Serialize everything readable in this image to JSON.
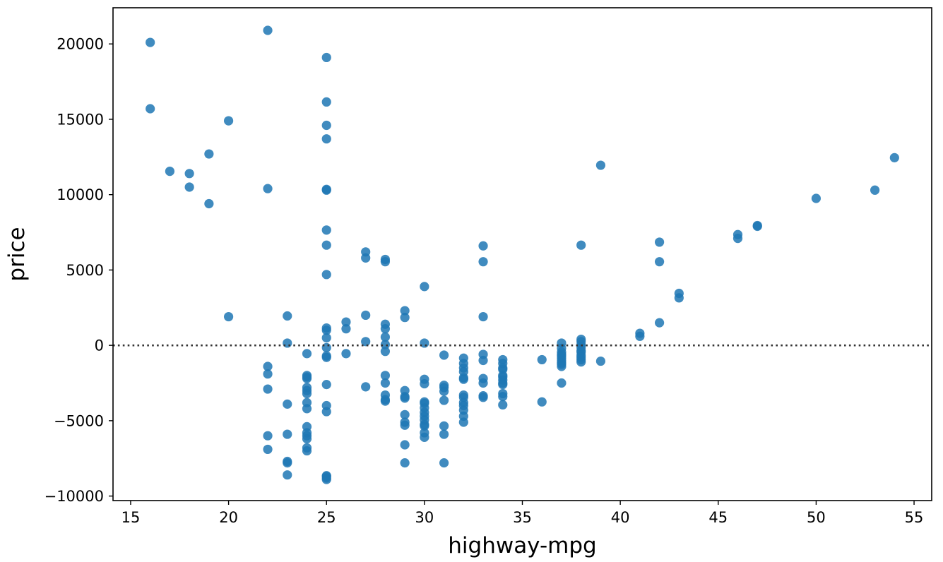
{
  "chart_data": {
    "type": "scatter",
    "xlabel": "highway-mpg",
    "ylabel": "price",
    "xlim": [
      14.1,
      55.9
    ],
    "ylim": [
      -10300,
      22400
    ],
    "xticks": [
      15,
      20,
      25,
      30,
      35,
      40,
      45,
      50,
      55
    ],
    "yticks": [
      -10000,
      -5000,
      0,
      5000,
      10000,
      15000,
      20000
    ],
    "xtick_labels": [
      "15",
      "20",
      "25",
      "30",
      "35",
      "40",
      "45",
      "50",
      "55"
    ],
    "ytick_labels": [
      "−10000",
      "−5000",
      "0",
      "5000",
      "10000",
      "15000",
      "20000"
    ],
    "grid": false,
    "reference_line": {
      "y": 0,
      "style": "dotted"
    },
    "colors": {
      "point": "#1f77b4",
      "reference_line": "#333333",
      "axis": "#000000"
    },
    "series": [
      {
        "x": [
          16,
          16,
          17,
          18,
          18,
          19,
          19,
          20,
          20,
          22,
          22,
          22,
          22,
          22,
          22,
          22,
          23,
          23,
          23,
          23,
          23,
          23,
          23,
          24,
          24,
          24,
          24,
          24,
          24,
          24,
          24,
          24,
          24,
          24,
          24,
          24,
          24,
          24,
          25,
          25,
          25,
          25,
          25,
          25,
          25,
          25,
          25,
          25,
          25,
          25,
          25,
          25,
          25,
          25,
          25,
          25,
          25,
          25,
          25,
          25,
          26,
          26,
          26,
          27,
          27,
          27,
          27,
          27,
          28,
          28,
          28,
          28,
          28,
          28,
          28,
          28,
          28,
          28,
          28,
          28,
          29,
          29,
          29,
          29,
          29,
          29,
          29,
          29,
          29,
          29,
          30,
          30,
          30,
          30,
          30,
          30,
          30,
          30,
          30,
          30,
          30,
          30,
          30,
          30,
          31,
          31,
          31,
          31,
          31,
          31,
          31,
          31,
          32,
          32,
          32,
          32,
          32,
          32,
          32,
          32,
          32,
          32,
          32,
          32,
          32,
          33,
          33,
          33,
          33,
          33,
          33,
          33,
          33,
          33,
          34,
          34,
          34,
          34,
          34,
          34,
          34,
          34,
          34,
          34,
          34,
          34,
          36,
          36,
          37,
          37,
          37,
          37,
          37,
          37,
          37,
          37,
          37,
          37,
          37,
          38,
          38,
          38,
          38,
          38,
          38,
          38,
          38,
          38,
          38,
          38,
          39,
          39,
          41,
          41,
          42,
          42,
          42,
          43,
          43,
          46,
          46,
          47,
          47,
          50,
          53,
          54
        ],
        "y": [
          20100,
          15700,
          11550,
          11400,
          10500,
          12700,
          9400,
          14900,
          1900,
          20900,
          10400,
          -1400,
          -1900,
          -2900,
          -6000,
          -6900,
          1950,
          150,
          -3900,
          -5900,
          -7700,
          -7800,
          -8600,
          -550,
          -2000,
          -2100,
          -2200,
          -2800,
          -3000,
          -3200,
          -3800,
          -4200,
          -5400,
          -5800,
          -6000,
          -6200,
          -6800,
          -7000,
          19100,
          16150,
          14600,
          13700,
          10350,
          10300,
          7650,
          6650,
          4700,
          1150,
          1000,
          500,
          -150,
          -700,
          -800,
          -2600,
          -4000,
          -4400,
          -8650,
          -8700,
          -8800,
          -8900,
          1550,
          1100,
          -550,
          6200,
          5800,
          2000,
          250,
          -2750,
          5700,
          5550,
          1400,
          1100,
          550,
          50,
          -400,
          -2000,
          -2500,
          -3300,
          -3600,
          -3700,
          2300,
          1850,
          -3000,
          -3400,
          -3500,
          -4600,
          -5100,
          -5300,
          -6600,
          -7800,
          3900,
          150,
          -2250,
          -2550,
          -3750,
          -3850,
          -4150,
          -4450,
          -4700,
          -4950,
          -5250,
          -5350,
          -5800,
          -6100,
          -650,
          -2650,
          -2800,
          -3050,
          -3650,
          -5350,
          -5900,
          -7800,
          -850,
          -1200,
          -1500,
          -1750,
          -2150,
          -2250,
          -3300,
          -3450,
          -3800,
          -4000,
          -4300,
          -4700,
          -5100,
          6600,
          5550,
          1900,
          -600,
          -1000,
          -2200,
          -2500,
          -3350,
          -3450,
          -950,
          -1200,
          -1500,
          -1600,
          -2000,
          -2100,
          -2300,
          -2500,
          -2600,
          -3200,
          -3400,
          -3950,
          -950,
          -3750,
          150,
          -200,
          -450,
          -600,
          -700,
          -850,
          -1000,
          -1150,
          -1250,
          -1400,
          -2500,
          6650,
          400,
          250,
          50,
          -150,
          -350,
          -450,
          -650,
          -800,
          -950,
          -1100,
          11950,
          -1050,
          800,
          600,
          6850,
          5550,
          1500,
          3450,
          3150,
          7350,
          7100,
          7950,
          7900,
          9750,
          10300,
          12450
        ]
      }
    ]
  }
}
